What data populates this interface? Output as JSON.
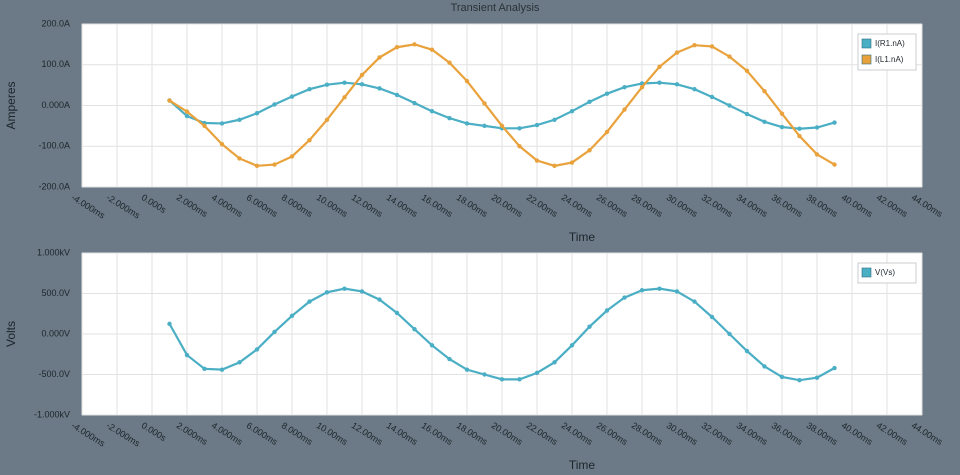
{
  "chart_data": [
    {
      "type": "line",
      "title": "Transient Analysis",
      "y_label": "Amperes",
      "x_label": "Time",
      "x": [
        1,
        2,
        3,
        4,
        5,
        6,
        7,
        8,
        9,
        10,
        11,
        12,
        13,
        14,
        15,
        16,
        17,
        18,
        19,
        20,
        21,
        22,
        23,
        24,
        25,
        26,
        27,
        28,
        29,
        30,
        31,
        32,
        33,
        34,
        35,
        36,
        37,
        38,
        39
      ],
      "series": [
        {
          "name": "I(R1.nA)",
          "color": "#4aaec4",
          "values": [
            12.5,
            -26,
            -43,
            -44,
            -35,
            -19,
            2.5,
            22,
            40,
            51,
            56,
            52,
            42,
            26,
            6,
            -14,
            -31,
            -44,
            -50,
            -56,
            -56,
            -48,
            -35,
            -14,
            9,
            29,
            45,
            54,
            56,
            52,
            40,
            21,
            0,
            -21,
            -40,
            -53,
            -57,
            -54,
            -42
          ]
        },
        {
          "name": "I(L1.nA)",
          "color": "#e9a23b",
          "values": [
            12,
            -15,
            -50,
            -95,
            -130,
            -148,
            -145,
            -125,
            -85,
            -35,
            20,
            75,
            118,
            143,
            150,
            137,
            105,
            60,
            5,
            -50,
            -100,
            -135,
            -148,
            -140,
            -110,
            -65,
            -10,
            45,
            95,
            130,
            148,
            145,
            120,
            85,
            35,
            -20,
            -75,
            -120,
            -145
          ]
        }
      ],
      "xlim": [
        -4,
        44
      ],
      "xticks": [
        {
          "value": -4,
          "label": "-4.000ms"
        },
        {
          "value": -2,
          "label": "-2.000ms"
        },
        {
          "value": 0,
          "label": "0.000s"
        },
        {
          "value": 2,
          "label": "2.000ms"
        },
        {
          "value": 4,
          "label": "4.000ms"
        },
        {
          "value": 6,
          "label": "6.000ms"
        },
        {
          "value": 8,
          "label": "8.000ms"
        },
        {
          "value": 10,
          "label": "10.00ms"
        },
        {
          "value": 12,
          "label": "12.00ms"
        },
        {
          "value": 14,
          "label": "14.00ms"
        },
        {
          "value": 16,
          "label": "16.00ms"
        },
        {
          "value": 18,
          "label": "18.00ms"
        },
        {
          "value": 20,
          "label": "20.00ms"
        },
        {
          "value": 22,
          "label": "22.00ms"
        },
        {
          "value": 24,
          "label": "24.00ms"
        },
        {
          "value": 26,
          "label": "26.00ms"
        },
        {
          "value": 28,
          "label": "28.00ms"
        },
        {
          "value": 30,
          "label": "30.00ms"
        },
        {
          "value": 32,
          "label": "32.00ms"
        },
        {
          "value": 34,
          "label": "34.00ms"
        },
        {
          "value": 36,
          "label": "36.00ms"
        },
        {
          "value": 38,
          "label": "38.00ms"
        },
        {
          "value": 40,
          "label": "40.00ms"
        },
        {
          "value": 42,
          "label": "42.00ms"
        },
        {
          "value": 44,
          "label": "44.00ms"
        }
      ],
      "ylim": [
        -200,
        200
      ],
      "yticks": [
        {
          "value": 200,
          "label": "200.0A"
        },
        {
          "value": 100,
          "label": "100.0A"
        },
        {
          "value": 0,
          "label": "0.000A"
        },
        {
          "value": -100,
          "label": "-100.0A"
        },
        {
          "value": -200,
          "label": "-200.0A"
        }
      ],
      "grid": true,
      "legend": "top-right"
    },
    {
      "type": "line",
      "y_label": "Volts",
      "x_label": "Time",
      "x": [
        1,
        2,
        3,
        4,
        5,
        6,
        7,
        8,
        9,
        10,
        11,
        12,
        13,
        14,
        15,
        16,
        17,
        18,
        19,
        20,
        21,
        22,
        23,
        24,
        25,
        26,
        27,
        28,
        29,
        30,
        31,
        32,
        33,
        34,
        35,
        36,
        37,
        38,
        39
      ],
      "series": [
        {
          "name": "V(Vs)",
          "color": "#4aaec4",
          "values": [
            125,
            -260,
            -430,
            -440,
            -350,
            -190,
            25,
            225,
            400,
            515,
            560,
            525,
            425,
            260,
            60,
            -140,
            -310,
            -440,
            -500,
            -560,
            -560,
            -480,
            -350,
            -140,
            90,
            290,
            450,
            540,
            560,
            525,
            400,
            210,
            0,
            -210,
            -400,
            -530,
            -570,
            -540,
            -420
          ]
        }
      ],
      "xlim": [
        -4,
        44
      ],
      "xticks": [
        {
          "value": -4,
          "label": "-4.000ms"
        },
        {
          "value": -2,
          "label": "-2.000ms"
        },
        {
          "value": 0,
          "label": "0.000s"
        },
        {
          "value": 2,
          "label": "2.000ms"
        },
        {
          "value": 4,
          "label": "4.000ms"
        },
        {
          "value": 6,
          "label": "6.000ms"
        },
        {
          "value": 8,
          "label": "8.000ms"
        },
        {
          "value": 10,
          "label": "10.00ms"
        },
        {
          "value": 12,
          "label": "12.00ms"
        },
        {
          "value": 14,
          "label": "14.00ms"
        },
        {
          "value": 16,
          "label": "16.00ms"
        },
        {
          "value": 18,
          "label": "18.00ms"
        },
        {
          "value": 20,
          "label": "20.00ms"
        },
        {
          "value": 22,
          "label": "22.00ms"
        },
        {
          "value": 24,
          "label": "24.00ms"
        },
        {
          "value": 26,
          "label": "26.00ms"
        },
        {
          "value": 28,
          "label": "28.00ms"
        },
        {
          "value": 30,
          "label": "30.00ms"
        },
        {
          "value": 32,
          "label": "32.00ms"
        },
        {
          "value": 34,
          "label": "34.00ms"
        },
        {
          "value": 36,
          "label": "36.00ms"
        },
        {
          "value": 38,
          "label": "38.00ms"
        },
        {
          "value": 40,
          "label": "40.00ms"
        },
        {
          "value": 42,
          "label": "42.00ms"
        },
        {
          "value": 44,
          "label": "44.00ms"
        }
      ],
      "ylim": [
        -1000,
        1000
      ],
      "yticks": [
        {
          "value": 1000,
          "label": "1.000kV"
        },
        {
          "value": 500,
          "label": "500.0V"
        },
        {
          "value": 0,
          "label": "0.000V"
        },
        {
          "value": -500,
          "label": "-500.0V"
        },
        {
          "value": -1000,
          "label": "-1.000kV"
        }
      ],
      "grid": true,
      "legend": "top-right"
    }
  ]
}
